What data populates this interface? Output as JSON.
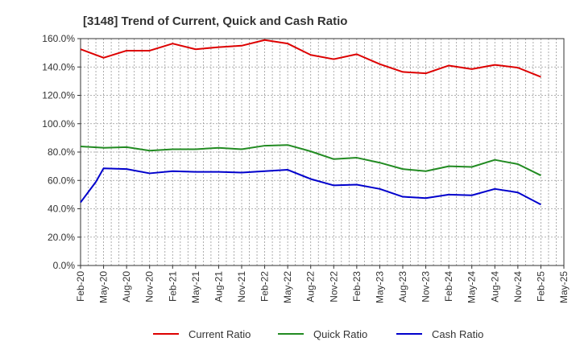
{
  "chart_data": {
    "type": "line",
    "title": "[3148]  Trend of Current, Quick and Cash Ratio",
    "xlabel": "",
    "ylabel": "",
    "ylim": [
      0,
      160
    ],
    "yticks": [
      "0.0%",
      "20.0%",
      "40.0%",
      "60.0%",
      "80.0%",
      "100.0%",
      "120.0%",
      "140.0%",
      "160.0%"
    ],
    "ytick_values": [
      0,
      20,
      40,
      60,
      80,
      100,
      120,
      140,
      160
    ],
    "x_tick_labels": [
      "Feb-20",
      "May-20",
      "Aug-20",
      "Nov-20",
      "Feb-21",
      "May-21",
      "Aug-21",
      "Nov-21",
      "Feb-22",
      "May-22",
      "Aug-22",
      "Nov-22",
      "Feb-23",
      "May-23",
      "Aug-23",
      "Nov-23",
      "Feb-24",
      "May-24",
      "Aug-24",
      "Nov-24",
      "Feb-25",
      "May-25"
    ],
    "x_months_per_tick": 3,
    "grid": true,
    "legend_position": "bottom",
    "series": [
      {
        "name": "Current Ratio",
        "color": "#dd0000",
        "x_month_index": [
          0,
          3,
          6,
          9,
          12,
          15,
          18,
          21,
          24,
          27,
          30,
          33,
          36,
          39,
          42,
          45,
          48,
          51,
          54,
          57,
          60
        ],
        "values": [
          152.5,
          146.5,
          151.5,
          151.5,
          156.5,
          152.5,
          154.0,
          155.0,
          159.0,
          156.5,
          148.5,
          145.5,
          149.0,
          142.0,
          136.5,
          135.5,
          141.0,
          138.5,
          141.5,
          139.5,
          133.0
        ]
      },
      {
        "name": "Quick Ratio",
        "color": "#228b22",
        "x_month_index": [
          0,
          3,
          6,
          9,
          12,
          15,
          18,
          21,
          24,
          27,
          30,
          33,
          36,
          39,
          42,
          45,
          48,
          51,
          54,
          57,
          60
        ],
        "values": [
          84.0,
          83.0,
          83.5,
          81.0,
          82.0,
          82.0,
          83.0,
          82.0,
          84.5,
          85.0,
          80.5,
          75.0,
          76.0,
          72.5,
          68.0,
          66.5,
          70.0,
          69.5,
          74.5,
          71.5,
          63.5
        ]
      },
      {
        "name": "Cash Ratio",
        "color": "#0000cc",
        "x_month_index": [
          0,
          2,
          3,
          6,
          9,
          12,
          15,
          18,
          21,
          24,
          27,
          30,
          33,
          36,
          39,
          42,
          45,
          48,
          51,
          54,
          57,
          60
        ],
        "values": [
          44.5,
          59.0,
          68.5,
          68.0,
          65.0,
          66.5,
          66.0,
          66.0,
          65.5,
          66.5,
          67.5,
          61.0,
          56.5,
          57.0,
          54.0,
          48.5,
          47.5,
          50.0,
          49.5,
          54.0,
          51.5,
          43.0
        ]
      }
    ]
  }
}
